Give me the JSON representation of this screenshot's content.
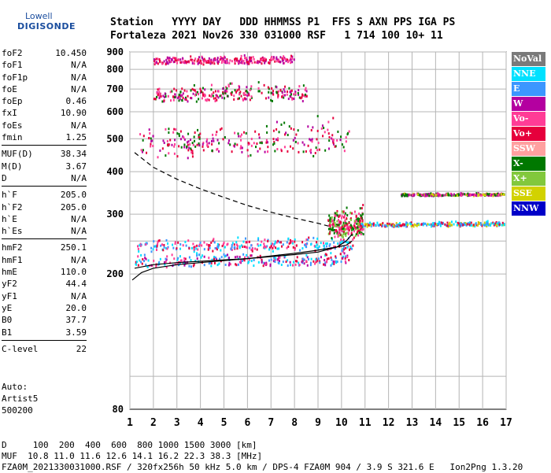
{
  "logo": {
    "line1": "Lowell",
    "line2": "DIGISONDE"
  },
  "header": {
    "line1": "Station   YYYY DAY   DDD HHMMSS P1  FFS S AXN PPS IGA PS",
    "line2": "Fortaleza 2021 Nov26 330 031000 RSF   1 714 100 10+ 11"
  },
  "params": {
    "group1": [
      {
        "name": "foF2",
        "value": "10.450"
      },
      {
        "name": "foF1",
        "value": "N/A"
      },
      {
        "name": "foF1p",
        "value": "N/A"
      },
      {
        "name": "foE",
        "value": "N/A"
      },
      {
        "name": "foEp",
        "value": "0.46"
      },
      {
        "name": "fxI",
        "value": "10.90"
      },
      {
        "name": "foEs",
        "value": "N/A"
      },
      {
        "name": "fmin",
        "value": "1.25"
      }
    ],
    "group2": [
      {
        "name": "MUF(D)",
        "value": "38.34"
      },
      {
        "name": "M(D)",
        "value": "3.67"
      },
      {
        "name": "D",
        "value": "N/A"
      }
    ],
    "group3": [
      {
        "name": "h`F",
        "value": "205.0"
      },
      {
        "name": "h`F2",
        "value": "205.0"
      },
      {
        "name": "h`E",
        "value": "N/A"
      },
      {
        "name": "h`Es",
        "value": "N/A"
      }
    ],
    "group4": [
      {
        "name": "hmF2",
        "value": "250.1"
      },
      {
        "name": "hmF1",
        "value": "N/A"
      },
      {
        "name": "hmE",
        "value": "110.0"
      },
      {
        "name": "yF2",
        "value": "44.4"
      },
      {
        "name": "yF1",
        "value": "N/A"
      },
      {
        "name": "yE",
        "value": "20.0"
      },
      {
        "name": "B0",
        "value": "37.7"
      },
      {
        "name": "B1",
        "value": "3.59"
      }
    ],
    "group5": [
      {
        "name": "C-level",
        "value": "22"
      }
    ]
  },
  "auto": {
    "line1": "Auto:",
    "line2": "Artist5",
    "line3": "500200"
  },
  "legend": [
    {
      "label": "NoVal",
      "color": "#7a7a7a"
    },
    {
      "label": "NNE",
      "color": "#00e1ff"
    },
    {
      "label": "E",
      "color": "#3c96ff"
    },
    {
      "label": "W",
      "color": "#b400a0"
    },
    {
      "label": "Vo-",
      "color": "#ff3c96"
    },
    {
      "label": "Vo+",
      "color": "#e6003c"
    },
    {
      "label": "SSW",
      "color": "#ffa0a0"
    },
    {
      "label": "X-",
      "color": "#007800"
    },
    {
      "label": "X+",
      "color": "#82c83c"
    },
    {
      "label": "SSE",
      "color": "#d2d200"
    },
    {
      "label": "NNW",
      "color": "#0000c8"
    }
  ],
  "footer": {
    "line1": "D     100  200  400  600  800 1000 1500 3000 [km]",
    "line2": "MUF  10.8 11.0 11.6 12.6 14.1 16.2 22.3 38.3 [MHz]",
    "line3": "FZA0M_2021330031000.RSF / 320fx256h 50 kHz 5.0 km / DPS-4 FZA0M 904 / 3.9 S 321.6 E   Ion2Png 1.3.20"
  },
  "chart_data": {
    "type": "scatter",
    "title": "",
    "xlabel": "",
    "ylabel": "",
    "xlim": [
      1,
      17
    ],
    "ylim": [
      80,
      900
    ],
    "y_scale": "log",
    "xticks": [
      1,
      2,
      3,
      4,
      5,
      6,
      7,
      8,
      9,
      10,
      11,
      12,
      13,
      14,
      15,
      16,
      17
    ],
    "yticks": [
      80,
      200,
      300,
      400,
      500,
      600,
      700,
      800,
      900
    ],
    "grid": true,
    "traces": [
      {
        "name": "profile",
        "style": "solid",
        "color": "#000000",
        "x": [
          1.1,
          1.5,
          2,
          3,
          4,
          5,
          6,
          7,
          8,
          9,
          9.8,
          10.2,
          10.45
        ],
        "y": [
          192,
          202,
          208,
          213,
          216,
          219,
          222,
          226,
          230,
          235,
          240,
          243,
          250
        ]
      },
      {
        "name": "trace",
        "style": "solid",
        "color": "#000000",
        "x": [
          1.2,
          2,
          3,
          4,
          5,
          6,
          7,
          8,
          9,
          9.8,
          10.2,
          10.45
        ],
        "y": [
          208,
          213,
          216,
          218,
          220,
          222,
          225,
          228,
          232,
          240,
          250,
          262
        ]
      },
      {
        "name": "extension",
        "style": "dashed",
        "color": "#000000",
        "x": [
          1.2,
          2,
          3,
          4,
          5,
          6,
          7,
          8,
          9,
          9.5
        ],
        "y": [
          455,
          412,
          380,
          356,
          336,
          318,
          304,
          292,
          282,
          276
        ]
      }
    ],
    "echo_clusters": [
      {
        "x": [
          1.2,
          10.3
        ],
        "y": [
          205,
          240
        ],
        "colors": [
          "#e6003c",
          "#3c96ff",
          "#00e1ff",
          "#ff3c96",
          "#b400a0"
        ]
      },
      {
        "x": [
          1.3,
          10.5
        ],
        "y": [
          228,
          265
        ],
        "colors": [
          "#3c96ff",
          "#00e1ff",
          "#e6003c",
          "#ff3c96"
        ]
      },
      {
        "x": [
          9.4,
          10.9
        ],
        "y": [
          240,
          330
        ],
        "colors": [
          "#e6003c",
          "#ff3c96",
          "#007800",
          "#82c83c"
        ]
      },
      {
        "x": [
          10.8,
          16.9
        ],
        "y": [
          275,
          290
        ],
        "colors": [
          "#00e1ff",
          "#3c96ff",
          "#d2d200",
          "#e6003c"
        ]
      },
      {
        "x": [
          12.5,
          16.9
        ],
        "y": [
          340,
          350
        ],
        "colors": [
          "#b400a0",
          "#ff3c96",
          "#d2d200",
          "#007800"
        ]
      },
      {
        "x": [
          1.3,
          10.3
        ],
        "y": [
          410,
          600
        ],
        "colors": [
          "#e6003c",
          "#ff3c96",
          "#007800",
          "#b400a0"
        ]
      },
      {
        "x": [
          2,
          8.5
        ],
        "y": [
          620,
          760
        ],
        "colors": [
          "#e6003c",
          "#ff3c96",
          "#b400a0",
          "#007800"
        ]
      },
      {
        "x": [
          2,
          8
        ],
        "y": [
          820,
          900
        ],
        "colors": [
          "#e6003c",
          "#ff3c96",
          "#b400a0"
        ]
      }
    ]
  }
}
